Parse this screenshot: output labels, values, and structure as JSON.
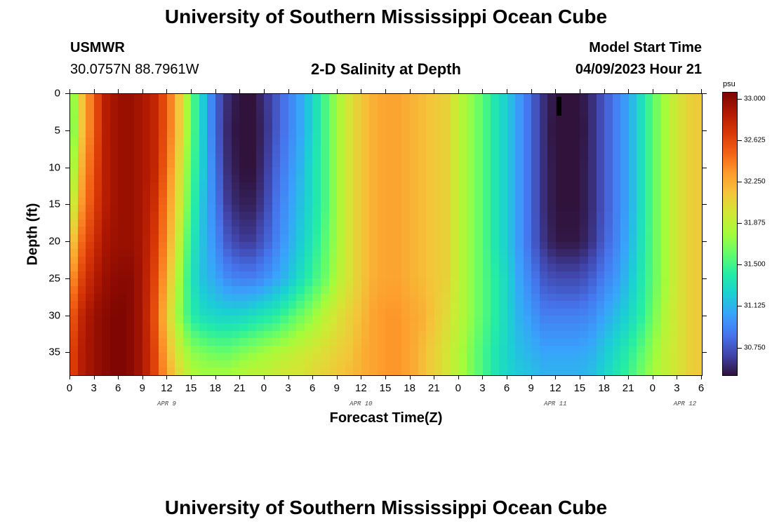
{
  "page": {
    "title": "University of Southern Mississippi Ocean Cube",
    "footer_title": "University of Southern Mississippi Ocean Cube"
  },
  "header": {
    "station": "USMWR",
    "coords": "30.0757N  88.7961W",
    "plot_title": "2-D Salinity at Depth",
    "start_label": "Model Start Time",
    "start_value": "04/09/2023 Hour 21"
  },
  "chart_data": {
    "type": "heatmap",
    "title": "2-D Salinity at Depth",
    "xlabel": "Forecast Time(Z)",
    "ylabel": "Depth (ft)",
    "x_tick_labels": [
      "0",
      "3",
      "6",
      "9",
      "12",
      "15",
      "18",
      "21",
      "0",
      "3",
      "6",
      "9",
      "12",
      "15",
      "18",
      "21",
      "0",
      "3",
      "6",
      "9",
      "12",
      "15",
      "18",
      "21",
      "0",
      "3",
      "6"
    ],
    "x_day_labels": [
      {
        "label": "APR 9",
        "hour": 12
      },
      {
        "label": "APR 10",
        "hour": 36
      },
      {
        "label": "APR 11",
        "hour": 60
      },
      {
        "label": "APR 12",
        "hour": 76
      }
    ],
    "xlim": [
      0,
      78
    ],
    "y_tick_labels": [
      "0",
      "5",
      "10",
      "15",
      "20",
      "25",
      "30",
      "35"
    ],
    "y_ticks": [
      0,
      5,
      10,
      15,
      20,
      25,
      30,
      35
    ],
    "ylim": [
      0,
      38
    ],
    "colorbar": {
      "unit": "psu",
      "min": 30.5,
      "max": 33.0,
      "tick_values": [
        33.0,
        32.625,
        32.25,
        31.875,
        31.5,
        31.125,
        30.75
      ],
      "tick_labels": [
        "33.000",
        "32.625",
        "32.250",
        "31.875",
        "31.500",
        "31.125",
        "30.750"
      ],
      "colors": [
        "#30123b",
        "#4145ab",
        "#4675ed",
        "#39a2fc",
        "#1bcfd4",
        "#24eca6",
        "#61fc6c",
        "#a4fc3b",
        "#d1e834",
        "#f3c63a",
        "#fe9b2d",
        "#f36315",
        "#d93806",
        "#b11901",
        "#7a0402"
      ]
    },
    "time_hours": [
      0,
      1.5,
      3,
      4.5,
      6,
      7.5,
      9,
      10.5,
      12,
      13.5,
      15,
      16.5,
      18,
      19.5,
      21,
      22.5,
      24,
      25.5,
      27,
      28.5,
      30,
      31.5,
      33,
      34.5,
      36,
      37.5,
      39,
      40.5,
      42,
      43.5,
      45,
      46.5,
      48,
      49.5,
      51,
      52.5,
      54,
      55.5,
      57,
      58.5,
      60,
      61.5,
      63,
      64.5,
      66,
      67.5,
      69,
      70.5,
      72,
      73.5,
      75,
      76.5,
      78
    ],
    "depths_ft": [
      0,
      5,
      10,
      15,
      20,
      25,
      30,
      35,
      38
    ],
    "salinity_psu": [
      [
        31.55,
        32.1,
        32.5,
        32.8,
        32.9,
        32.9,
        32.85,
        32.75,
        32.5,
        32.1,
        31.6,
        31.2,
        30.8,
        30.6,
        30.5,
        30.5,
        30.6,
        30.75,
        30.9,
        31.05,
        31.25,
        31.5,
        31.75,
        31.95,
        32.1,
        32.2,
        32.25,
        32.25,
        32.2,
        32.15,
        32.1,
        32.05,
        31.85,
        31.7,
        31.55,
        31.35,
        31.2,
        31.0,
        30.8,
        30.6,
        30.5,
        30.5,
        30.5,
        30.6,
        30.75,
        30.9,
        31.05,
        31.3,
        31.55,
        31.75,
        31.95,
        32.05,
        32.1
      ],
      [
        31.5,
        32.1,
        32.5,
        32.8,
        32.9,
        32.9,
        32.85,
        32.75,
        32.5,
        32.1,
        31.6,
        31.2,
        30.8,
        30.58,
        30.48,
        30.48,
        30.58,
        30.75,
        30.9,
        31.05,
        31.25,
        31.5,
        31.75,
        31.95,
        32.1,
        32.2,
        32.25,
        32.25,
        32.2,
        32.15,
        32.1,
        32.05,
        31.85,
        31.7,
        31.55,
        31.35,
        31.2,
        31.0,
        30.8,
        30.6,
        30.48,
        30.48,
        30.48,
        30.6,
        30.75,
        30.9,
        31.05,
        31.3,
        31.55,
        31.75,
        31.95,
        32.05,
        32.1
      ],
      [
        31.6,
        32.2,
        32.55,
        32.8,
        32.9,
        32.9,
        32.85,
        32.75,
        32.45,
        32.0,
        31.55,
        31.2,
        30.85,
        30.6,
        30.5,
        30.5,
        30.6,
        30.8,
        30.95,
        31.1,
        31.3,
        31.5,
        31.75,
        31.95,
        32.1,
        32.2,
        32.25,
        32.25,
        32.2,
        32.15,
        32.1,
        32.05,
        31.85,
        31.7,
        31.55,
        31.35,
        31.2,
        31.0,
        30.8,
        30.6,
        30.5,
        30.5,
        30.5,
        30.6,
        30.75,
        30.9,
        31.05,
        31.3,
        31.55,
        31.75,
        31.95,
        32.05,
        32.1
      ],
      [
        31.75,
        32.3,
        32.6,
        32.8,
        32.9,
        32.9,
        32.85,
        32.7,
        32.35,
        31.95,
        31.5,
        31.15,
        30.9,
        30.65,
        30.55,
        30.55,
        30.65,
        30.85,
        31.0,
        31.15,
        31.3,
        31.5,
        31.75,
        31.95,
        32.1,
        32.2,
        32.25,
        32.25,
        32.2,
        32.15,
        32.1,
        32.05,
        31.85,
        31.7,
        31.55,
        31.35,
        31.2,
        31.0,
        30.8,
        30.6,
        30.5,
        30.5,
        30.5,
        30.6,
        30.75,
        30.9,
        31.05,
        31.3,
        31.55,
        31.75,
        31.95,
        32.05,
        32.1
      ],
      [
        32.0,
        32.45,
        32.7,
        32.85,
        32.9,
        32.9,
        32.85,
        32.65,
        32.3,
        31.85,
        31.4,
        31.15,
        30.95,
        30.75,
        30.65,
        30.65,
        30.75,
        30.9,
        31.05,
        31.2,
        31.35,
        31.55,
        31.75,
        31.95,
        32.1,
        32.2,
        32.25,
        32.25,
        32.2,
        32.15,
        32.1,
        32.05,
        31.85,
        31.7,
        31.55,
        31.35,
        31.2,
        31.0,
        30.8,
        30.62,
        30.52,
        30.52,
        30.52,
        30.62,
        30.78,
        30.92,
        31.08,
        31.32,
        31.55,
        31.75,
        31.95,
        32.05,
        32.1
      ],
      [
        32.25,
        32.6,
        32.8,
        32.9,
        32.95,
        32.95,
        32.85,
        32.6,
        32.2,
        31.75,
        31.35,
        31.15,
        31.05,
        30.95,
        30.9,
        30.9,
        30.95,
        31.05,
        31.15,
        31.3,
        31.45,
        31.6,
        31.8,
        31.95,
        32.1,
        32.2,
        32.25,
        32.25,
        32.2,
        32.15,
        32.1,
        32.05,
        31.85,
        31.7,
        31.55,
        31.4,
        31.25,
        31.05,
        30.9,
        30.75,
        30.7,
        30.7,
        30.7,
        30.78,
        30.9,
        31.0,
        31.15,
        31.35,
        31.55,
        31.75,
        31.95,
        32.05,
        32.1
      ],
      [
        32.45,
        32.75,
        32.9,
        32.95,
        33.0,
        32.95,
        32.85,
        32.55,
        32.1,
        31.7,
        31.4,
        31.3,
        31.25,
        31.25,
        31.25,
        31.3,
        31.35,
        31.4,
        31.5,
        31.6,
        31.7,
        31.85,
        31.95,
        32.05,
        32.15,
        32.25,
        32.3,
        32.3,
        32.25,
        32.2,
        32.1,
        32.0,
        31.85,
        31.7,
        31.55,
        31.4,
        31.25,
        31.1,
        31.0,
        30.9,
        30.9,
        30.9,
        30.9,
        30.95,
        31.05,
        31.15,
        31.25,
        31.4,
        31.6,
        31.8,
        31.95,
        32.05,
        32.1
      ],
      [
        32.55,
        32.8,
        32.9,
        32.95,
        33.0,
        32.95,
        32.85,
        32.6,
        32.2,
        31.9,
        31.7,
        31.65,
        31.6,
        31.6,
        31.65,
        31.7,
        31.75,
        31.8,
        31.85,
        31.9,
        31.95,
        32.0,
        32.05,
        32.1,
        32.2,
        32.25,
        32.3,
        32.3,
        32.25,
        32.15,
        32.05,
        31.95,
        31.8,
        31.65,
        31.5,
        31.35,
        31.25,
        31.15,
        31.1,
        31.05,
        31.05,
        31.05,
        31.05,
        31.1,
        31.2,
        31.3,
        31.4,
        31.55,
        31.7,
        31.85,
        31.95,
        32.05,
        32.1
      ],
      [
        32.55,
        32.8,
        32.9,
        32.95,
        33.0,
        32.95,
        32.85,
        32.6,
        32.25,
        32.0,
        31.8,
        31.75,
        31.75,
        31.75,
        31.8,
        31.85,
        31.85,
        31.9,
        31.95,
        31.95,
        32.0,
        32.05,
        32.1,
        32.15,
        32.2,
        32.25,
        32.3,
        32.3,
        32.25,
        32.15,
        32.05,
        31.95,
        31.8,
        31.65,
        31.5,
        31.35,
        31.25,
        31.2,
        31.15,
        31.1,
        31.1,
        31.1,
        31.1,
        31.15,
        31.25,
        31.35,
        31.45,
        31.6,
        31.75,
        31.85,
        31.95,
        32.05,
        32.1
      ]
    ],
    "marker": {
      "hour": 60.5,
      "depth_from": 0.5,
      "depth_to": 3,
      "color": "#000000"
    }
  }
}
